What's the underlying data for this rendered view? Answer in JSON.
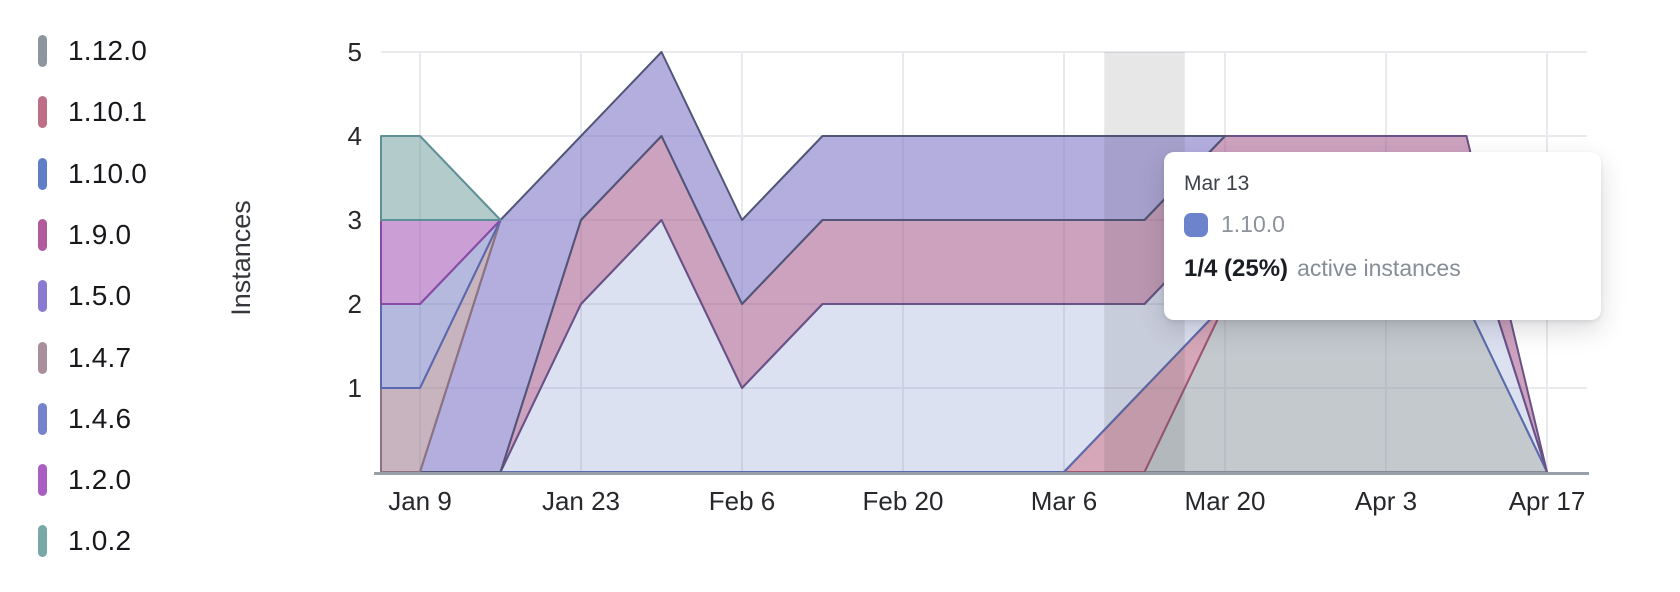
{
  "chart_data": {
    "type": "area",
    "stacked": true,
    "title": "",
    "xlabel": "",
    "ylabel": "Instances",
    "ylim": [
      0,
      5
    ],
    "grid": true,
    "legend_position": "left",
    "interval": "weekly",
    "x": [
      "Jan 9",
      "Jan 16",
      "Jan 23",
      "Jan 30",
      "Feb 6",
      "Feb 13",
      "Feb 20",
      "Feb 27",
      "Mar 6",
      "Mar 13",
      "Mar 20",
      "Mar 27",
      "Apr 3",
      "Apr 10",
      "Apr 17"
    ],
    "x_tick_labels": [
      "Jan 9",
      "Jan 23",
      "Feb 6",
      "Feb 20",
      "Mar 6",
      "Mar 20",
      "Apr 3",
      "Apr 17"
    ],
    "y_ticks": [
      1,
      2,
      3,
      4,
      5
    ],
    "stack_order_note": "series listed bottom-to-top of stack; legend shows same order top-to-bottom",
    "series": [
      {
        "name": "1.12.0",
        "color": "#8d969e",
        "fill": "rgba(137,147,157,0.50)",
        "stroke": "#838b95",
        "values": [
          0,
          0,
          0,
          0,
          0,
          0,
          0,
          0,
          0,
          0,
          2,
          2,
          2,
          2,
          0
        ]
      },
      {
        "name": "1.10.1",
        "color": "#bf6e88",
        "fill": "rgba(180,95,125,0.55)",
        "stroke": "#a05672",
        "values": [
          0,
          0,
          0,
          0,
          0,
          0,
          0,
          0,
          0,
          1,
          0,
          0,
          0,
          0,
          0
        ]
      },
      {
        "name": "1.10.0",
        "color": "#5f7ec8",
        "fill": "rgba(95,118,191,0.22)",
        "stroke": "#5b6cae",
        "values": [
          0,
          0,
          2,
          3,
          1,
          2,
          2,
          2,
          2,
          1,
          1,
          1,
          1,
          1,
          0
        ]
      },
      {
        "name": "1.9.0",
        "color": "#b05b9d",
        "fill": "rgba(164,86,139,0.55)",
        "stroke": "#6b5286",
        "values": [
          0,
          0,
          1,
          1,
          1,
          1,
          1,
          1,
          1,
          1,
          1,
          1,
          1,
          1,
          0
        ]
      },
      {
        "name": "1.5.0",
        "color": "#8a7ad0",
        "fill": "rgba(130,120,202,0.60)",
        "stroke": "#515577",
        "values": [
          0,
          3,
          1,
          1,
          1,
          1,
          1,
          1,
          1,
          1,
          0,
          0,
          0,
          0,
          0
        ]
      },
      {
        "name": "1.4.7",
        "color": "#a98e9b",
        "fill": "rgba(153,119,139,0.55)",
        "stroke": "#8d7280",
        "values": [
          1,
          0,
          0,
          0,
          0,
          0,
          0,
          0,
          0,
          0,
          0,
          0,
          0,
          0,
          0
        ]
      },
      {
        "name": "1.4.6",
        "color": "#7583cc",
        "fill": "rgba(119,128,193,0.55)",
        "stroke": "#5a68b0",
        "values": [
          1,
          0,
          0,
          0,
          0,
          0,
          0,
          0,
          0,
          0,
          0,
          0,
          0,
          0,
          0
        ]
      },
      {
        "name": "1.2.0",
        "color": "#a95fc2",
        "fill": "rgba(160,80,180,0.55)",
        "stroke": "#8a4ba6",
        "values": [
          1,
          0,
          0,
          0,
          0,
          0,
          0,
          0,
          0,
          0,
          0,
          0,
          0,
          0,
          0
        ]
      },
      {
        "name": "1.0.2",
        "color": "#78a8a8",
        "fill": "rgba(110,158,155,0.52)",
        "stroke": "#5f9097",
        "values": [
          1,
          0,
          0,
          0,
          0,
          0,
          0,
          0,
          0,
          0,
          0,
          0,
          0,
          0,
          0
        ]
      }
    ]
  },
  "hover": {
    "x_label": "Mar 13"
  },
  "tooltip": {
    "date": "Mar 13",
    "series": "1.10.0",
    "series_color": "#6d83cc",
    "stat": "1/4 (25%)",
    "note": "active instances"
  }
}
